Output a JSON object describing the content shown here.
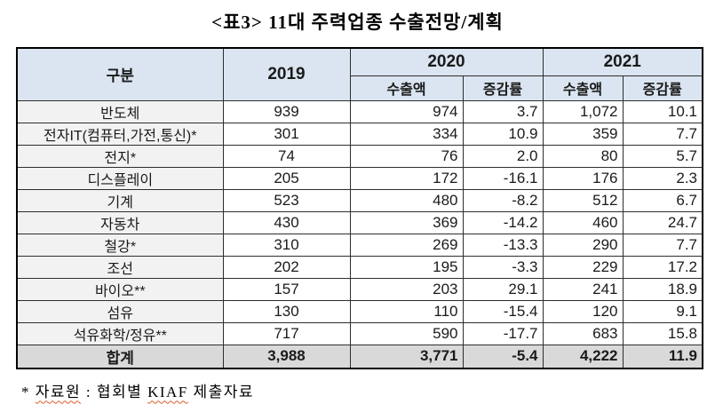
{
  "title": "<표3> 11대 주력업종 수출전망/계획",
  "table": {
    "header": {
      "col_category": "구분",
      "col_2019": "2019",
      "col_2020": "2020",
      "col_2021": "2021",
      "sub_export": "수출액",
      "sub_change": "증감률"
    },
    "rows": [
      {
        "label": "반도체",
        "y2019": "939",
        "y2020_export": "974",
        "y2020_change": "3.7",
        "y2021_export": "1,072",
        "y2021_change": "10.1"
      },
      {
        "label": "전자IT(컴퓨터,가전,통신)*",
        "y2019": "301",
        "y2020_export": "334",
        "y2020_change": "10.9",
        "y2021_export": "359",
        "y2021_change": "7.7"
      },
      {
        "label": "전지*",
        "y2019": "74",
        "y2020_export": "76",
        "y2020_change": "2.0",
        "y2021_export": "80",
        "y2021_change": "5.7"
      },
      {
        "label": "디스플레이",
        "y2019": "205",
        "y2020_export": "172",
        "y2020_change": "-16.1",
        "y2021_export": "176",
        "y2021_change": "2.3"
      },
      {
        "label": "기계",
        "y2019": "523",
        "y2020_export": "480",
        "y2020_change": "-8.2",
        "y2021_export": "512",
        "y2021_change": "6.7"
      },
      {
        "label": "자동차",
        "y2019": "430",
        "y2020_export": "369",
        "y2020_change": "-14.2",
        "y2021_export": "460",
        "y2021_change": "24.7"
      },
      {
        "label": "철강*",
        "y2019": "310",
        "y2020_export": "269",
        "y2020_change": "-13.3",
        "y2021_export": "290",
        "y2021_change": "7.7"
      },
      {
        "label": "조선",
        "y2019": "202",
        "y2020_export": "195",
        "y2020_change": "-3.3",
        "y2021_export": "229",
        "y2021_change": "17.2"
      },
      {
        "label": "바이오**",
        "y2019": "157",
        "y2020_export": "203",
        "y2020_change": "29.1",
        "y2021_export": "241",
        "y2021_change": "18.9"
      },
      {
        "label": "섬유",
        "y2019": "130",
        "y2020_export": "110",
        "y2020_change": "-15.4",
        "y2021_export": "120",
        "y2021_change": "9.1"
      },
      {
        "label": "석유화학/정유**",
        "y2019": "717",
        "y2020_export": "590",
        "y2020_change": "-17.7",
        "y2021_export": "683",
        "y2021_change": "15.8"
      }
    ],
    "total_row": {
      "label": "합계",
      "y2019": "3,988",
      "y2020_export": "3,771",
      "y2020_change": "-5.4",
      "y2021_export": "4,222",
      "y2021_change": "11.9"
    }
  },
  "footnote": {
    "marker": "*",
    "parts": [
      {
        "text": "자료원",
        "spellcheck": true
      },
      {
        "text": " : 협회별 ",
        "spellcheck": false
      },
      {
        "text": "KIAF",
        "spellcheck": true
      },
      {
        "text": " 제출자료",
        "spellcheck": false
      }
    ]
  },
  "colors": {
    "header_bg": "#dbe5f1",
    "label_column_bg": "#f2f2f2",
    "total_row_bg": "#d9d9d9",
    "outer_border": "#000000",
    "inner_border": "#2e2e2e",
    "spellcheck_underline": "#e05c2a"
  }
}
